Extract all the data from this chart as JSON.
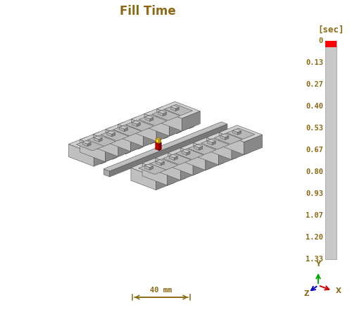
{
  "title": "Fill Time",
  "scale_label": "[sec]",
  "scale_values": [
    "0",
    "0.13",
    "0.27",
    "0.40",
    "0.53",
    "0.67",
    "0.80",
    "0.93",
    "1.07",
    "1.20",
    "1.33"
  ],
  "text_color": "#8B6914",
  "bg_color": "#ffffff",
  "dim_label": "40 mm",
  "face_light": "#c8c8c8",
  "face_mid": "#b0b0b0",
  "face_dark": "#888888",
  "face_darker": "#666666",
  "edge_color": "#505050",
  "runner_face": "#a0a0a0",
  "runner_dark": "#787878",
  "sprue_face": "#a8a8a8",
  "sprue_dark": "#707070",
  "inject_yellow": "#ffdd00",
  "inject_red": "#cc0000"
}
